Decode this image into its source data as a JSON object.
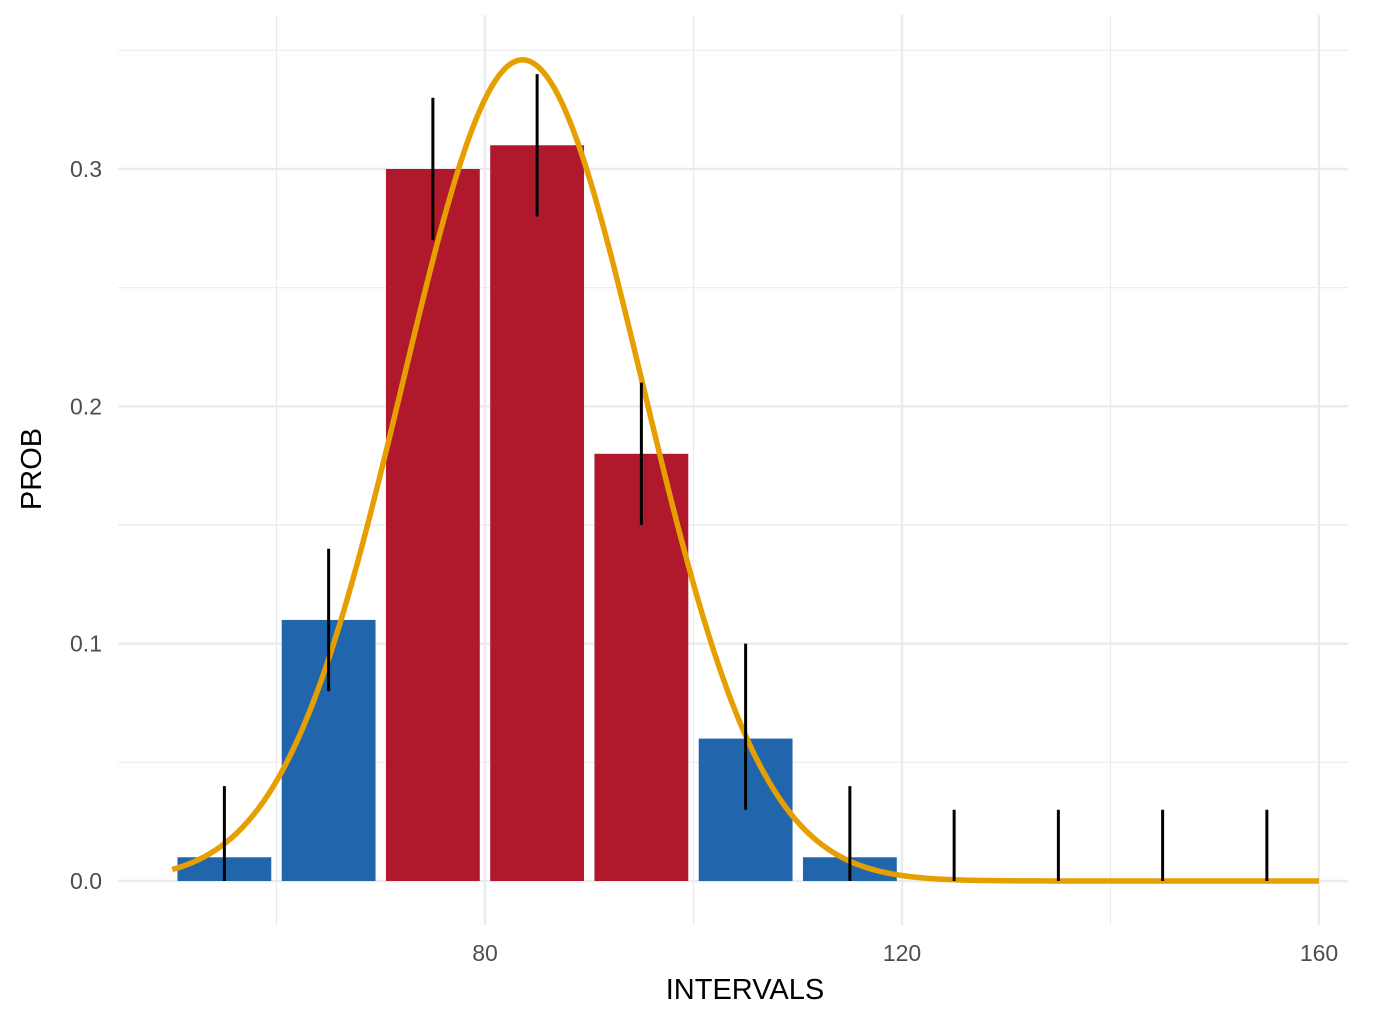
{
  "chart_data": {
    "type": "bar",
    "xlabel": "INTERVALS",
    "ylabel": "PROB",
    "xlim": [
      64.6,
      162.8
    ],
    "ylim": [
      -0.0165,
      0.3515
    ],
    "x_ticks": [
      80,
      120,
      160
    ],
    "x_minor_ticks": [
      60,
      100,
      140
    ],
    "y_ticks": [
      0.0,
      0.1,
      0.2,
      0.3
    ],
    "y_minor_ticks": [
      0.05,
      0.15,
      0.25,
      0.35
    ],
    "grid": true,
    "bar_width": 9,
    "bars": [
      {
        "x": 55,
        "value": 0.01,
        "err_low": 0.0,
        "err_high": 0.04,
        "group": "outside"
      },
      {
        "x": 65,
        "value": 0.11,
        "err_low": 0.08,
        "err_high": 0.14,
        "group": "outside"
      },
      {
        "x": 75,
        "value": 0.3,
        "err_low": 0.27,
        "err_high": 0.33,
        "group": "inside"
      },
      {
        "x": 85,
        "value": 0.31,
        "err_low": 0.28,
        "err_high": 0.34,
        "group": "inside"
      },
      {
        "x": 95,
        "value": 0.18,
        "err_low": 0.15,
        "err_high": 0.21,
        "group": "inside"
      },
      {
        "x": 105,
        "value": 0.06,
        "err_low": 0.03,
        "err_high": 0.1,
        "group": "outside"
      },
      {
        "x": 115,
        "value": 0.01,
        "err_low": 0.0,
        "err_high": 0.04,
        "group": "outside"
      },
      {
        "x": 125,
        "value": 0.0,
        "err_low": 0.0,
        "err_high": 0.03,
        "group": "outside"
      },
      {
        "x": 135,
        "value": 0.0,
        "err_low": 0.0,
        "err_high": 0.03,
        "group": "outside"
      },
      {
        "x": 145,
        "value": 0.0,
        "err_low": 0.0,
        "err_high": 0.03,
        "group": "outside"
      },
      {
        "x": 155,
        "value": 0.0,
        "err_low": 0.0,
        "err_high": 0.03,
        "group": "outside"
      }
    ],
    "curve": {
      "type": "normal-density-scaled",
      "mean": 83.6,
      "sd": 11.5,
      "peak": 0.346,
      "x_range": [
        50,
        160
      ]
    },
    "colors": {
      "inside": "#b0182b",
      "outside": "#2166ac",
      "curve": "#e69f00",
      "error_bar": "#000000",
      "grid": "#ebebeb"
    }
  }
}
